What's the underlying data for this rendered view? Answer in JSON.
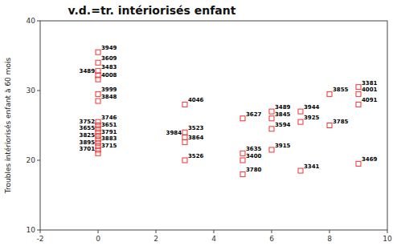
{
  "chart_data": {
    "type": "scatter",
    "title": "v.d.=tr. intériorisés enfant",
    "y_label": "Troubles intériorisés enfant à 60 mois",
    "xlim": [
      -2,
      10
    ],
    "ylim": [
      10,
      40
    ],
    "xticks": [
      -2,
      0,
      2,
      4,
      6,
      8,
      10
    ],
    "yticks": [
      10,
      20,
      30,
      40
    ],
    "color": "#EE3333",
    "marker": "square",
    "x": [
      0,
      0,
      0,
      0,
      0,
      0,
      0,
      0,
      0,
      0,
      0,
      0,
      0,
      0,
      0,
      0,
      0,
      3,
      3,
      3,
      3,
      3,
      5,
      5,
      5,
      5,
      6,
      6,
      6,
      6,
      7,
      7,
      7,
      8,
      8,
      9,
      9,
      9,
      9
    ],
    "values": [
      35.5,
      34.0,
      32.8,
      32.2,
      31.6,
      29.5,
      28.5,
      25.5,
      25.0,
      24.5,
      24.0,
      23.5,
      23.0,
      22.5,
      22.0,
      21.5,
      21.0,
      28.0,
      24.0,
      23.3,
      22.6,
      20.0,
      26.0,
      21.0,
      20.0,
      18.0,
      27.0,
      26.0,
      24.5,
      21.5,
      27.0,
      25.5,
      18.5,
      29.5,
      25.0,
      30.5,
      29.5,
      28.0,
      19.5
    ],
    "annotations": [
      "3949",
      "3609",
      "3483",
      "3489",
      "4008",
      "3999",
      "3848",
      "3746",
      "3752",
      "3651",
      "3655",
      "3791",
      "3825",
      "3883",
      "3895",
      "3715",
      "3701",
      "4046",
      "3523",
      "3984",
      "3864",
      "3526",
      "3627",
      "3635",
      "3400",
      "3780",
      "3489",
      "3845",
      "3594",
      "3915",
      "3944",
      "3925",
      "3341",
      "3855",
      "3785",
      "3381",
      "4001",
      "4091",
      "3469"
    ]
  }
}
